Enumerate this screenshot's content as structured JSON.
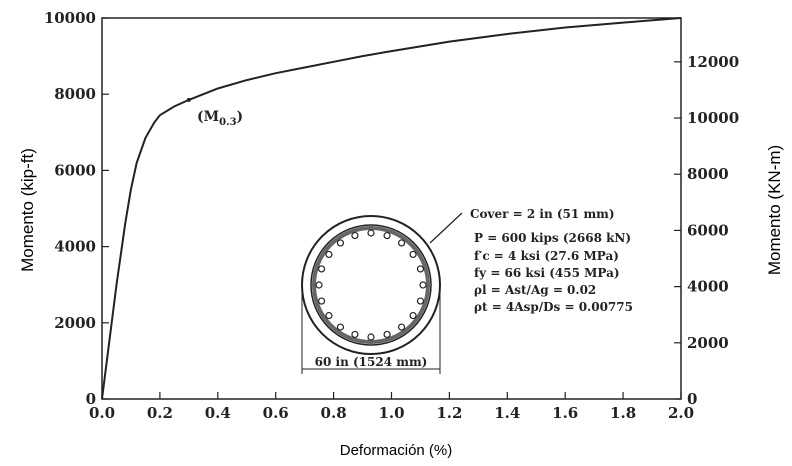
{
  "chart_data": {
    "type": "line",
    "title": "",
    "xlabel": "Deformación (%)",
    "ylabel_left": "Momento (kip-ft)",
    "ylabel_right": "Momento (KN-m)",
    "xlim": [
      0.0,
      2.0
    ],
    "ylim_left": [
      0,
      10000
    ],
    "ylim_right": [
      0,
      13560
    ],
    "x_ticks": [
      "0.0",
      "0.2",
      "0.4",
      "0.6",
      "0.8",
      "1.0",
      "1.2",
      "1.4",
      "1.6",
      "1.8",
      "2.0"
    ],
    "y_ticks_left": [
      "0",
      "2000",
      "4000",
      "6000",
      "8000",
      "10000"
    ],
    "y_ticks_right": [
      "0",
      "2000",
      "4000",
      "6000",
      "8000",
      "10000",
      "12000"
    ],
    "grid": false,
    "series": [
      {
        "x": [
          0.0,
          0.02,
          0.05,
          0.08,
          0.1,
          0.12,
          0.15,
          0.18,
          0.2,
          0.25,
          0.3,
          0.35,
          0.4,
          0.5,
          0.6,
          0.7,
          0.8,
          0.9,
          1.0,
          1.2,
          1.4,
          1.6,
          1.8,
          2.0
        ],
        "y": [
          0,
          1200,
          3000,
          4600,
          5500,
          6200,
          6850,
          7250,
          7450,
          7680,
          7850,
          8000,
          8150,
          8370,
          8550,
          8700,
          8850,
          9000,
          9130,
          9380,
          9580,
          9750,
          9880,
          10000
        ]
      }
    ],
    "annotations": {
      "moment_label": "(M",
      "moment_sub": "0.3",
      "moment_close": ")",
      "moment_at": {
        "x": 0.3,
        "y": 7850
      },
      "cover": "Cover = 2 in (51 mm)",
      "p_line": "P = 600 kips (2668 kN)",
      "fc_line": "f′c = 4 ksi (27.6 MPa)",
      "fy_line": "fy = 66 ksi (455 MPa)",
      "rho_l_line": "ρl = Ast/Ag = 0.02",
      "rho_t_line": "ρt = 4Asp/Ds = 0.00775",
      "diameter": "60 in (1524 mm)"
    }
  }
}
